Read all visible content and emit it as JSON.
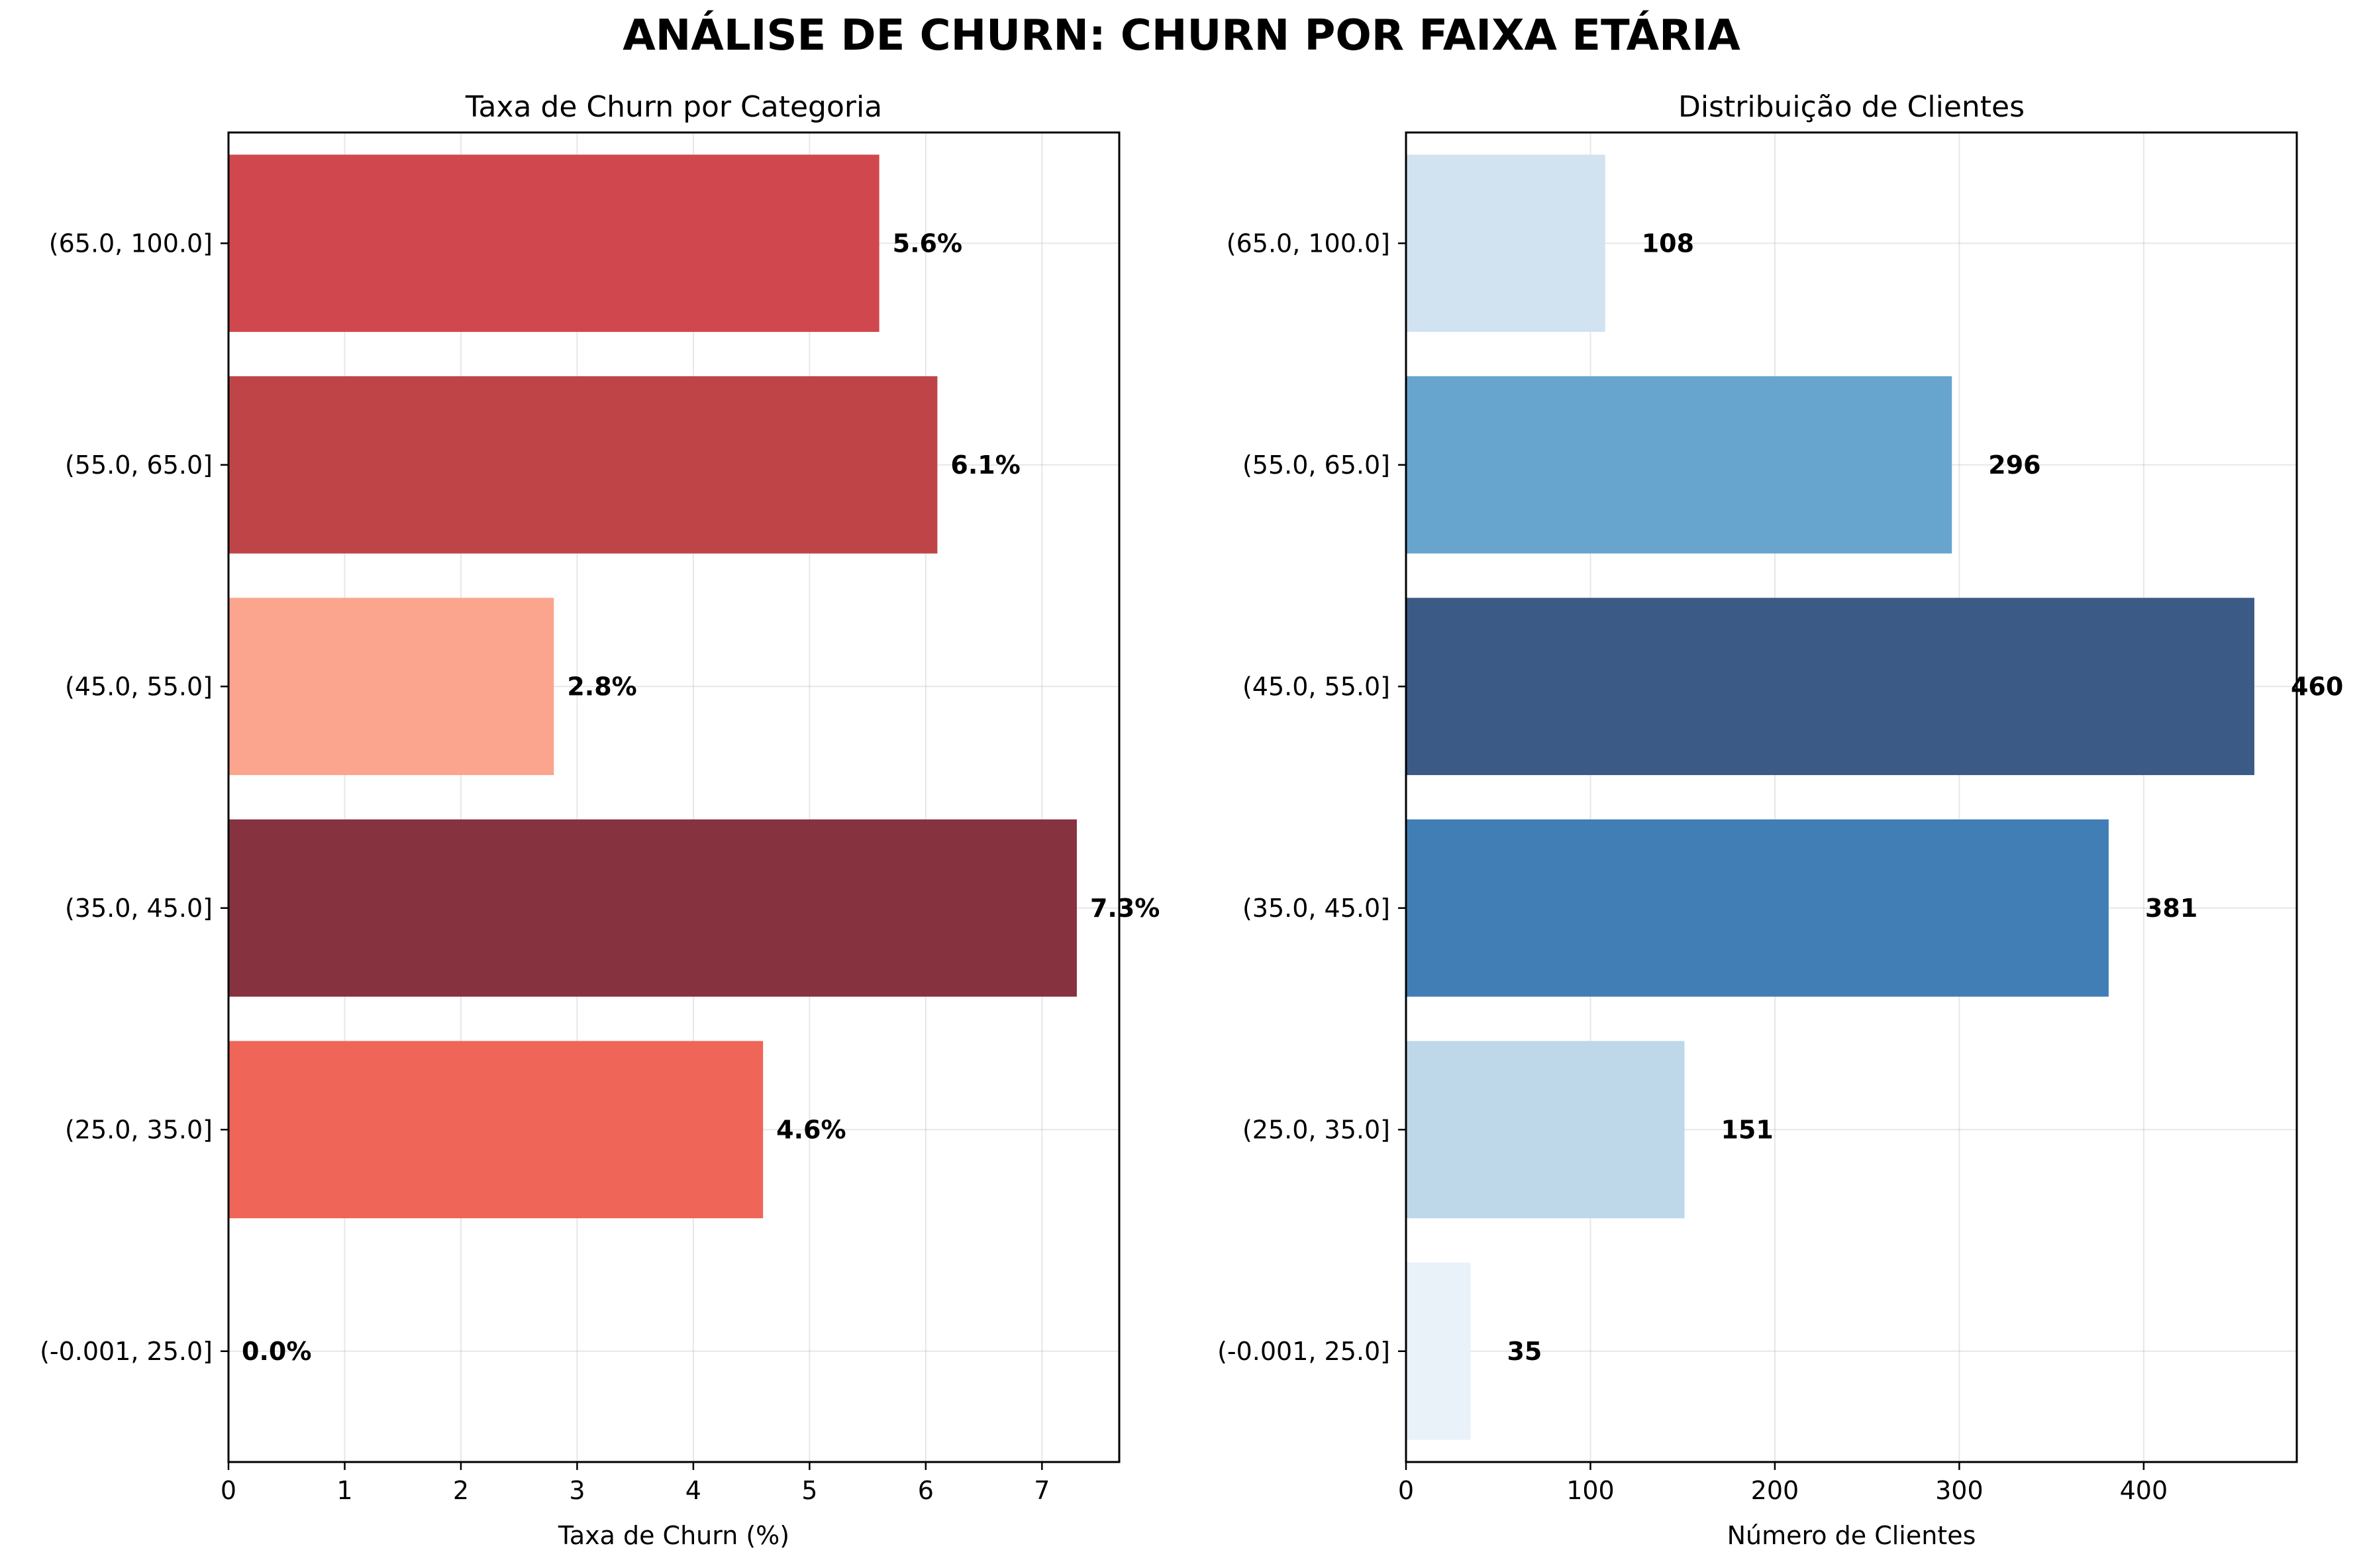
{
  "figure_title": "ANÁLISE DE CHURN: CHURN POR FAIXA ETÁRIA",
  "chart_data": [
    {
      "type": "bar",
      "orientation": "horizontal",
      "title": "Taxa de Churn por Categoria",
      "xlabel": "Taxa de Churn (%)",
      "ylabel": "",
      "categories": [
        "(-0.001, 25.0]",
        "(25.0, 35.0]",
        "(35.0, 45.0]",
        "(45.0, 55.0]",
        "(55.0, 65.0]",
        "(65.0, 100.0]"
      ],
      "values": [
        0.0,
        4.6,
        7.3,
        2.8,
        6.1,
        5.6
      ],
      "data_labels": [
        "0.0%",
        "4.6%",
        "7.3%",
        "2.8%",
        "6.1%",
        "5.6%"
      ],
      "bar_colors": [
        "#ffffff",
        "#ef6557",
        "#86323f",
        "#fba58e",
        "#bf4448",
        "#d0484d"
      ],
      "xlim": [
        0,
        7.665
      ],
      "xticks": [
        0,
        1,
        2,
        3,
        4,
        5,
        6,
        7
      ],
      "grid": true
    },
    {
      "type": "bar",
      "orientation": "horizontal",
      "title": "Distribuição de Clientes",
      "xlabel": "Número de Clientes",
      "ylabel": "",
      "categories": [
        "(-0.001, 25.0]",
        "(25.0, 35.0]",
        "(35.0, 45.0]",
        "(45.0, 55.0]",
        "(55.0, 65.0]",
        "(65.0, 100.0]"
      ],
      "values": [
        35,
        151,
        381,
        460,
        296,
        108
      ],
      "data_labels": [
        "35",
        "151",
        "381",
        "460",
        "296",
        "108"
      ],
      "bar_colors": [
        "#e9f1f9",
        "#bed8ea",
        "#417eb6",
        "#3b5a86",
        "#67a5ce",
        "#d1e2f1"
      ],
      "xlim": [
        0,
        483
      ],
      "xticks": [
        0,
        100,
        200,
        300,
        400
      ],
      "grid": true
    }
  ]
}
